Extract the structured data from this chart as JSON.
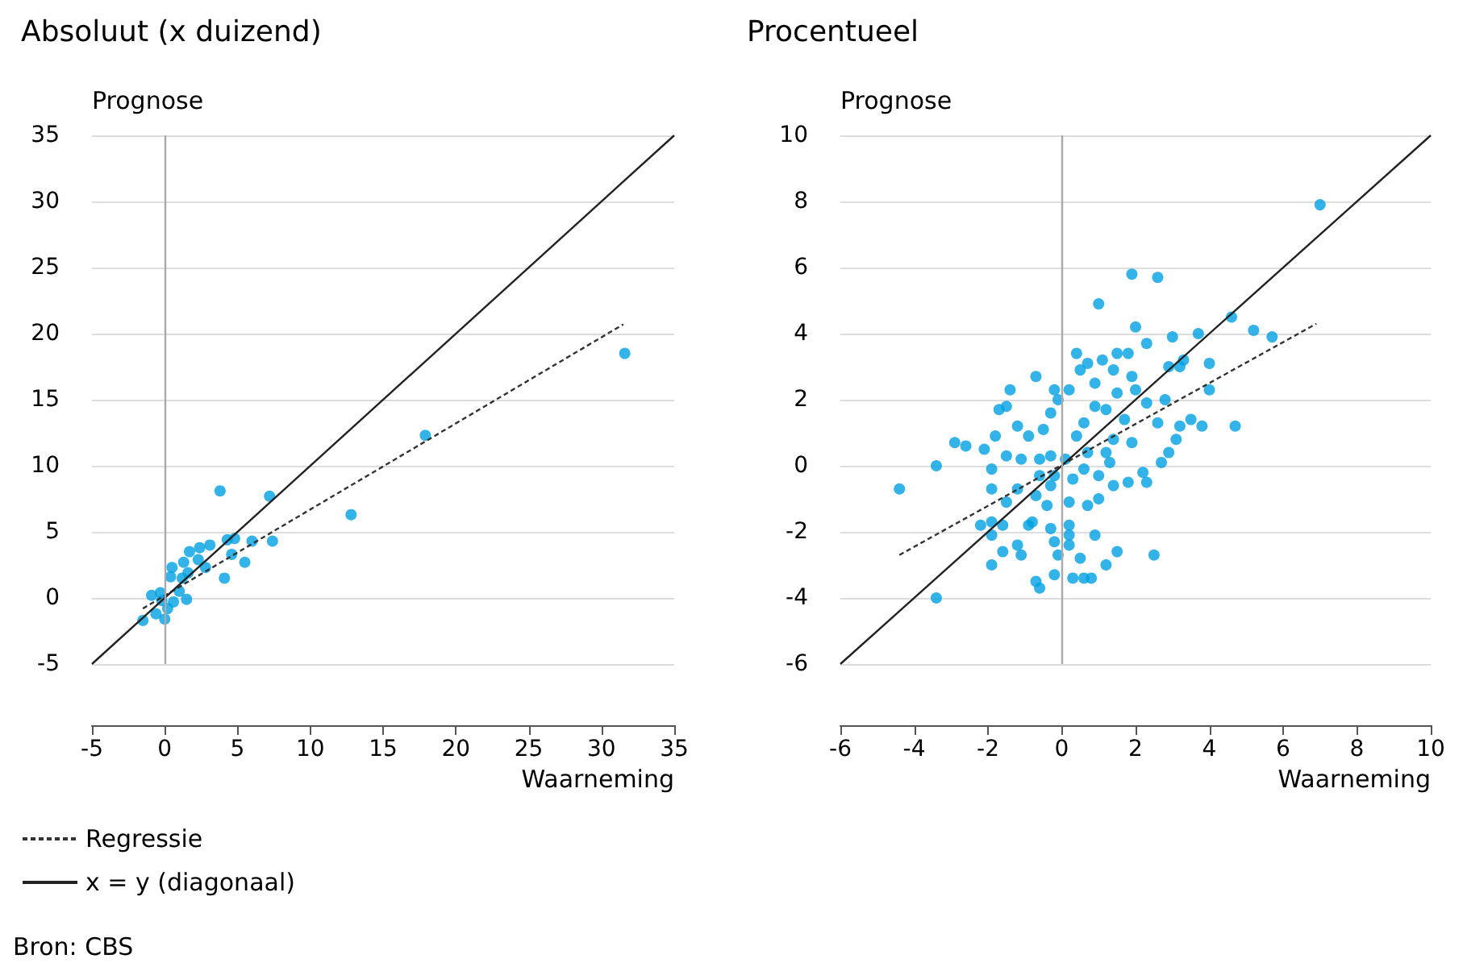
{
  "chart_data": [
    {
      "type": "scatter",
      "title": "Absoluut (x duizend)",
      "xlabel": "Waarneming",
      "ylabel": "Prognose",
      "xlim": [
        -5,
        35
      ],
      "ylim": [
        -5,
        35
      ],
      "xticks": [
        -5,
        0,
        5,
        10,
        15,
        20,
        25,
        30,
        35
      ],
      "yticks": [
        -5,
        0,
        5,
        10,
        15,
        20,
        25,
        30,
        35
      ],
      "grid": "y",
      "legend": "bottom left",
      "marker": "circle",
      "annotations": [
        "Bron: CBS"
      ],
      "ref_lines": [
        {
          "axis": "x",
          "value": 0,
          "color": "#aaaaaa"
        }
      ],
      "series": [
        {
          "type": "scatter",
          "color": "#00a0e1",
          "x": [
            31.6,
            17.9,
            12.8,
            3.8,
            7.2,
            6.0,
            7.4,
            4.3,
            4.8,
            5.5,
            4.1,
            4.6,
            3.1,
            2.4,
            1.7,
            1.3,
            0.5,
            2.8,
            2.3,
            1.6,
            -1.5,
            -0.9,
            0.0,
            1.5,
            -0.3,
            1.0,
            0.2,
            0.6,
            -0.6,
            1.2,
            0.4,
            -0.2
          ],
          "values": [
            18.5,
            12.3,
            6.3,
            8.1,
            7.7,
            4.3,
            4.3,
            4.4,
            4.5,
            2.7,
            1.5,
            3.3,
            4.0,
            3.8,
            3.5,
            2.7,
            2.3,
            2.3,
            2.9,
            1.9,
            -1.7,
            0.2,
            -1.6,
            -0.1,
            0.4,
            0.5,
            -0.8,
            -0.3,
            -1.2,
            1.5,
            1.6,
            -0.2
          ]
        },
        {
          "type": "line",
          "name": "Regressie",
          "color": "#333333",
          "line_style": "dashed",
          "marker": "none",
          "x": [
            -1.5,
            31.5
          ],
          "values": [
            -0.8,
            20.7
          ]
        },
        {
          "type": "line",
          "name": "x = y (diagonaal)",
          "color": "#222222",
          "line_style": "solid",
          "marker": "none",
          "x": [
            -5,
            35
          ],
          "values": [
            -5,
            35
          ]
        }
      ]
    },
    {
      "type": "scatter",
      "title": "Procentueel",
      "xlabel": "Waarneming",
      "ylabel": "Prognose",
      "xlim": [
        -6,
        10
      ],
      "ylim": [
        -6,
        10
      ],
      "xticks": [
        -6,
        -4,
        -2,
        0,
        2,
        4,
        6,
        8,
        10
      ],
      "yticks": [
        -6,
        -4,
        -2,
        0,
        2,
        4,
        6,
        8,
        10
      ],
      "grid": "y",
      "marker": "circle",
      "ref_lines": [
        {
          "axis": "x",
          "value": 0,
          "color": "#aaaaaa"
        }
      ],
      "series": [
        {
          "type": "scatter",
          "color": "#00a0e1",
          "x": [
            7.0,
            1.9,
            2.6,
            1.0,
            4.6,
            2.0,
            5.2,
            5.7,
            3.0,
            3.7,
            2.3,
            4.0,
            4.0,
            4.7,
            3.8,
            -4.4,
            -3.4,
            -3.4,
            -2.9,
            -2.6,
            -0.7,
            -1.4,
            -1.7,
            -1.5,
            2.5,
            -1.9,
            -0.6,
            -0.7,
            -0.2,
            0.3,
            0.6,
            0.8,
            1.2,
            1.5,
            0.5,
            0.9,
            -0.1,
            -1.1,
            -1.6,
            -1.2,
            -1.9,
            -2.2,
            -1.9,
            -1.6,
            -0.9,
            -0.3,
            0.2,
            0.7,
            1.0,
            1.4,
            1.8,
            2.3,
            2.2,
            2.7,
            2.9,
            3.1,
            3.5,
            3.2,
            2.6,
            2.8,
            2.3,
            2.0,
            1.8,
            1.5,
            1.1,
            0.7,
            0.4,
            0.5,
            0.9,
            1.4,
            1.9,
            2.9,
            3.3,
            3.2,
            -0.2,
            0.2,
            -0.1,
            -0.3,
            0.9,
            0.6,
            1.2,
            1.5,
            1.7,
            1.4,
            1.9,
            1.2,
            0.7,
            0.4,
            -0.5,
            -0.9,
            -1.2,
            -1.8,
            -2.1,
            -1.5,
            -1.1,
            -1.9,
            -1.9,
            -1.5,
            -1.2,
            -0.6,
            -0.7,
            -0.4,
            -0.8,
            0.3,
            0.6,
            1.0,
            1.3,
            0.1,
            -0.3,
            -0.2,
            -0.3,
            -0.6,
            0.2,
            -0.2,
            0.2,
            0.2
          ],
          "values": [
            7.9,
            5.8,
            5.7,
            4.9,
            4.5,
            4.2,
            4.1,
            3.9,
            3.9,
            4.0,
            3.7,
            3.1,
            2.3,
            1.2,
            1.2,
            -0.7,
            0.0,
            -4.0,
            0.7,
            0.6,
            2.7,
            2.3,
            1.7,
            1.8,
            -2.7,
            -3.0,
            -3.7,
            -3.5,
            -3.3,
            -3.4,
            -3.4,
            -3.4,
            -3.0,
            -2.6,
            -2.8,
            -2.1,
            -2.7,
            -2.7,
            -2.6,
            -2.4,
            -2.1,
            -1.8,
            -1.7,
            -1.8,
            -1.8,
            -1.9,
            -1.8,
            -1.2,
            -1.0,
            -0.6,
            -0.5,
            -0.5,
            -0.2,
            0.1,
            0.4,
            0.8,
            1.4,
            1.2,
            1.3,
            2.0,
            1.9,
            2.3,
            3.4,
            3.4,
            3.2,
            3.1,
            3.4,
            2.9,
            2.5,
            2.9,
            2.7,
            3.0,
            3.2,
            3.0,
            2.3,
            2.3,
            2.0,
            1.6,
            1.8,
            1.3,
            1.7,
            2.2,
            1.4,
            0.8,
            0.7,
            0.4,
            0.4,
            0.9,
            1.1,
            0.9,
            1.2,
            0.9,
            0.5,
            0.3,
            0.2,
            -0.1,
            -0.7,
            -1.1,
            -0.7,
            -0.3,
            -0.9,
            -1.2,
            -1.7,
            -0.4,
            -0.1,
            -0.3,
            0.1,
            0.2,
            0.3,
            -0.3,
            -0.6,
            0.2,
            -1.1,
            -2.3,
            -2.1,
            -2.4
          ]
        },
        {
          "type": "line",
          "color": "#333333",
          "line_style": "dashed",
          "marker": "none",
          "x": [
            -4.4,
            6.9
          ],
          "values": [
            -2.7,
            4.3
          ]
        },
        {
          "type": "line",
          "color": "#222222",
          "line_style": "solid",
          "marker": "none",
          "x": [
            -6,
            10
          ],
          "values": [
            -6,
            10
          ]
        }
      ]
    }
  ]
}
